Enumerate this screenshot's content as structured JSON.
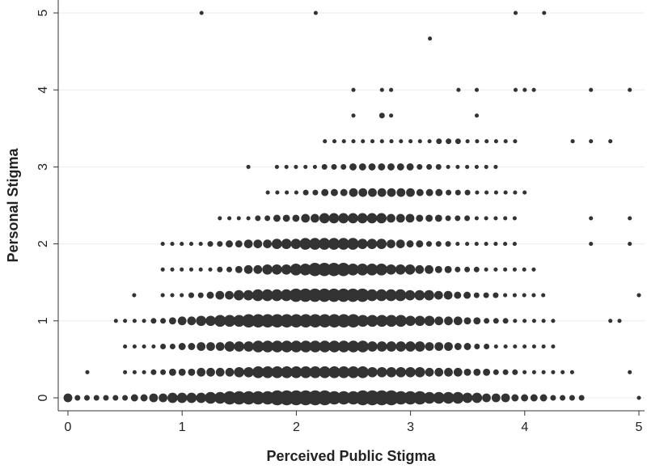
{
  "chart_data": {
    "type": "scatter",
    "subtype": "weighted-bubble",
    "xlabel": "Perceived Public Stigma",
    "ylabel": "Personal Stigma",
    "xlim": [
      -0.1,
      5.05
    ],
    "ylim": [
      -0.12,
      5.06
    ],
    "xticks": [
      0,
      1,
      2,
      3,
      4,
      5
    ],
    "yticks": [
      0,
      1,
      2,
      3,
      4,
      5
    ],
    "grid": true,
    "marker_color": "#333333",
    "marker_size_meaning": "frequency weight (relative 1-9)",
    "y_levels": [
      0,
      0.333,
      0.667,
      1,
      1.333,
      1.667,
      2,
      2.333,
      2.667,
      3,
      3.333,
      3.667,
      4,
      4.667,
      5
    ],
    "x_step": 0.0833,
    "rows": [
      {
        "y": 0,
        "x_from": 0,
        "x_to": 4.5,
        "sizes": [
          5,
          3,
          3,
          3,
          3,
          3,
          3,
          4,
          4,
          5,
          5,
          6,
          6,
          6,
          6,
          7,
          7,
          8,
          8,
          8,
          8,
          8,
          9,
          9,
          9,
          9,
          9,
          9,
          8,
          8,
          8,
          9,
          9,
          9,
          9,
          8,
          8,
          8,
          7,
          7,
          7,
          7,
          6,
          6,
          5,
          5,
          5,
          4,
          4,
          4,
          4,
          3,
          3,
          3,
          3,
          3
        ]
      },
      {
        "y": 0.333,
        "x_from": 0.5,
        "x_to": 4.5,
        "sizes": [
          2,
          2,
          2,
          3,
          3,
          4,
          4,
          4,
          5,
          5,
          5,
          5,
          6,
          6,
          7,
          7,
          7,
          7,
          7,
          7,
          7,
          7,
          7,
          7,
          7,
          7,
          6,
          6,
          6,
          6,
          6,
          6,
          5,
          5,
          5,
          5,
          4,
          4,
          4,
          3,
          3,
          3,
          2,
          2,
          2,
          2,
          2,
          2
        ]
      },
      {
        "y": 0.667,
        "x_from": 0.5,
        "x_to": 4.5,
        "sizes": [
          2,
          2,
          2,
          2,
          3,
          3,
          4,
          4,
          5,
          5,
          5,
          6,
          6,
          6,
          7,
          7,
          7,
          7,
          7,
          7,
          7,
          7,
          7,
          7,
          7,
          7,
          6,
          6,
          6,
          6,
          6,
          6,
          5,
          5,
          5,
          4,
          4,
          3,
          3,
          2,
          2,
          2,
          2,
          2,
          2,
          2
        ]
      },
      {
        "y": 1,
        "x_from": 0.5,
        "x_to": 4.5,
        "sizes": [
          2,
          2,
          2,
          3,
          3,
          4,
          5,
          5,
          6,
          6,
          7,
          7,
          7,
          8,
          8,
          8,
          8,
          8,
          8,
          8,
          8,
          8,
          8,
          8,
          8,
          7,
          7,
          7,
          7,
          7,
          6,
          6,
          6,
          5,
          5,
          5,
          4,
          4,
          3,
          3,
          3,
          2,
          2,
          2,
          2,
          2
        ]
      },
      {
        "y": 1.333,
        "x_from": 0.83,
        "x_to": 4.5,
        "sizes": [
          2,
          2,
          2,
          3,
          3,
          4,
          5,
          5,
          6,
          6,
          7,
          7,
          7,
          7,
          8,
          8,
          8,
          8,
          8,
          8,
          8,
          8,
          7,
          7,
          7,
          7,
          6,
          6,
          6,
          5,
          5,
          4,
          4,
          3,
          3,
          3,
          2,
          2,
          2,
          2,
          2
        ]
      },
      {
        "y": 1.667,
        "x_from": 0.83,
        "x_to": 4.5,
        "sizes": [
          2,
          2,
          2,
          2,
          2,
          2,
          3,
          3,
          4,
          5,
          5,
          6,
          6,
          6,
          7,
          7,
          8,
          8,
          8,
          8,
          7,
          7,
          7,
          7,
          6,
          6,
          6,
          5,
          5,
          4,
          4,
          3,
          3,
          3,
          2,
          2,
          2,
          2,
          2,
          2
        ]
      },
      {
        "y": 2,
        "x_from": 0.83,
        "x_to": 4.5,
        "sizes": [
          2,
          2,
          2,
          2,
          2,
          3,
          3,
          4,
          4,
          5,
          5,
          5,
          6,
          6,
          6,
          7,
          7,
          7,
          7,
          7,
          7,
          6,
          6,
          6,
          5,
          5,
          4,
          4,
          3,
          3,
          3,
          2,
          2,
          2,
          2,
          2,
          2,
          2
        ]
      },
      {
        "y": 2.333,
        "x_from": 1.33,
        "x_to": 4.5,
        "sizes": [
          2,
          2,
          2,
          2,
          3,
          3,
          4,
          4,
          4,
          5,
          5,
          6,
          6,
          6,
          6,
          6,
          6,
          6,
          5,
          5,
          5,
          4,
          4,
          4,
          3,
          3,
          3,
          2,
          2,
          2,
          2,
          2
        ]
      },
      {
        "y": 2.667,
        "x_from": 1.75,
        "x_to": 4.5,
        "sizes": [
          2,
          2,
          2,
          2,
          3,
          3,
          4,
          4,
          4,
          5,
          5,
          5,
          5,
          5,
          5,
          5,
          4,
          4,
          4,
          3,
          3,
          3,
          2,
          2,
          2,
          2,
          2,
          2
        ]
      },
      {
        "y": 3,
        "x_from": 1.83,
        "x_to": 4.25,
        "sizes": [
          2,
          2,
          2,
          2,
          2,
          3,
          3,
          3,
          4,
          4,
          4,
          4,
          4,
          4,
          4,
          3,
          3,
          3,
          2,
          2,
          2,
          2,
          2,
          2
        ]
      },
      {
        "y": 3.333,
        "x_from": 2.25,
        "x_to": 4.25,
        "sizes": [
          2,
          2,
          2,
          2,
          2,
          2,
          2,
          2,
          2,
          2,
          2,
          2,
          3,
          3,
          3,
          2,
          2,
          2,
          2,
          2,
          2
        ]
      }
    ],
    "points": [
      {
        "x": 0.17,
        "y": 0.333,
        "s": 2
      },
      {
        "x": 0.42,
        "y": 1,
        "s": 2
      },
      {
        "x": 0.58,
        "y": 1.333,
        "s": 2
      },
      {
        "x": 4.92,
        "y": 0.333,
        "s": 2
      },
      {
        "x": 5.0,
        "y": 0,
        "s": 2
      },
      {
        "x": 5.0,
        "y": 1.333,
        "s": 2
      },
      {
        "x": 4.75,
        "y": 1,
        "s": 2
      },
      {
        "x": 4.83,
        "y": 1,
        "s": 2
      },
      {
        "x": 4.58,
        "y": 2,
        "s": 2
      },
      {
        "x": 4.92,
        "y": 2,
        "s": 2
      },
      {
        "x": 4.58,
        "y": 2.333,
        "s": 2
      },
      {
        "x": 4.92,
        "y": 2.333,
        "s": 2
      },
      {
        "x": 4.42,
        "y": 3.333,
        "s": 2
      },
      {
        "x": 4.58,
        "y": 3.333,
        "s": 2
      },
      {
        "x": 4.75,
        "y": 3.333,
        "s": 2
      },
      {
        "x": 1.58,
        "y": 3,
        "s": 2
      },
      {
        "x": 2.5,
        "y": 3.667,
        "s": 2
      },
      {
        "x": 2.75,
        "y": 3.667,
        "s": 3
      },
      {
        "x": 2.83,
        "y": 3.667,
        "s": 2
      },
      {
        "x": 3.58,
        "y": 3.667,
        "s": 2
      },
      {
        "x": 2.5,
        "y": 4,
        "s": 2
      },
      {
        "x": 2.75,
        "y": 4,
        "s": 2
      },
      {
        "x": 2.83,
        "y": 4,
        "s": 2
      },
      {
        "x": 3.42,
        "y": 4,
        "s": 2
      },
      {
        "x": 3.58,
        "y": 4,
        "s": 2
      },
      {
        "x": 3.92,
        "y": 4,
        "s": 2
      },
      {
        "x": 4.0,
        "y": 4,
        "s": 2
      },
      {
        "x": 4.08,
        "y": 4,
        "s": 2
      },
      {
        "x": 4.58,
        "y": 4,
        "s": 2
      },
      {
        "x": 4.92,
        "y": 4,
        "s": 2
      },
      {
        "x": 3.17,
        "y": 4.667,
        "s": 2
      },
      {
        "x": 1.17,
        "y": 5,
        "s": 2
      },
      {
        "x": 2.17,
        "y": 5,
        "s": 2
      },
      {
        "x": 3.92,
        "y": 5,
        "s": 2
      },
      {
        "x": 4.17,
        "y": 5,
        "s": 2
      }
    ]
  }
}
